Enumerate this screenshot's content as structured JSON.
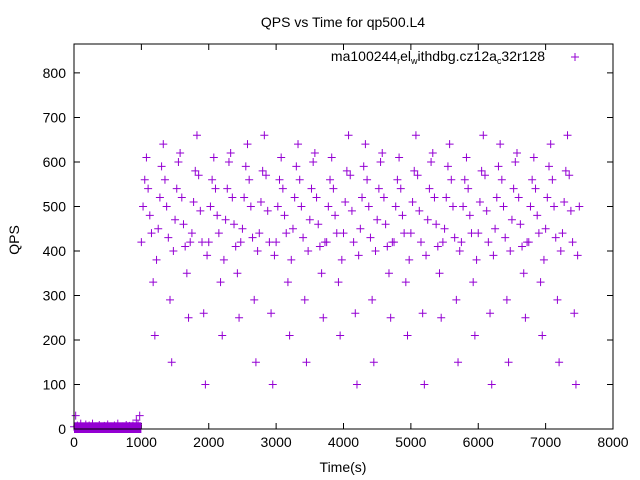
{
  "chart_data": {
    "type": "scatter",
    "title": "QPS vs Time for qp500.L4",
    "xlabel": "Time(s)",
    "ylabel": "QPS",
    "xlim": [
      0,
      8000
    ],
    "ylim": [
      0,
      865
    ],
    "xticks": [
      0,
      1000,
      2000,
      3000,
      4000,
      5000,
      6000,
      7000,
      8000
    ],
    "yticks": [
      0,
      100,
      200,
      300,
      400,
      500,
      600,
      700,
      800
    ],
    "grid": false,
    "legend_position": "top-right",
    "series": [
      {
        "name": "ma100244_rel_withdbg.cz12a_c32r128",
        "name_parts": {
          "a": "ma100244",
          "b": "r",
          "c": "el",
          "d": "w",
          "e": "ithdbg.cz12a",
          "f": "c",
          "g": "32r128"
        },
        "color": "#9400d3",
        "marker": "plus",
        "x_start": 0,
        "x_step": 25,
        "y": [
          5,
          30,
          8,
          5,
          12,
          5,
          3,
          10,
          5,
          8,
          5,
          12,
          4,
          6,
          5,
          9,
          5,
          3,
          7,
          5,
          10,
          5,
          6,
          4,
          8,
          5,
          12,
          5,
          3,
          6,
          5,
          9,
          5,
          7,
          4,
          8,
          5,
          20,
          10,
          30,
          420,
          500,
          560,
          610,
          540,
          480,
          440,
          330,
          210,
          380,
          450,
          520,
          590,
          640,
          560,
          500,
          430,
          290,
          150,
          400,
          470,
          540,
          600,
          620,
          520,
          460,
          410,
          350,
          250,
          420,
          440,
          510,
          580,
          660,
          570,
          490,
          420,
          260,
          100,
          390,
          420,
          500,
          560,
          610,
          540,
          480,
          440,
          330,
          210,
          380,
          470,
          540,
          600,
          620,
          520,
          460,
          410,
          350,
          250,
          420,
          450,
          520,
          590,
          640,
          560,
          500,
          430,
          290,
          150,
          400,
          440,
          510,
          580,
          660,
          570,
          490,
          420,
          260,
          100,
          390,
          420,
          500,
          560,
          610,
          540,
          480,
          440,
          330,
          210,
          380,
          450,
          520,
          590,
          640,
          560,
          500,
          430,
          290,
          150,
          400,
          470,
          540,
          600,
          620,
          520,
          460,
          410,
          350,
          250,
          420,
          420,
          500,
          560,
          610,
          540,
          480,
          440,
          330,
          210,
          380,
          440,
          510,
          580,
          660,
          570,
          490,
          420,
          260,
          100,
          390,
          450,
          520,
          590,
          640,
          560,
          500,
          430,
          290,
          150,
          400,
          470,
          540,
          600,
          620,
          520,
          460,
          410,
          350,
          250,
          420,
          420,
          500,
          560,
          610,
          540,
          480,
          440,
          330,
          210,
          380,
          440,
          510,
          580,
          660,
          570,
          490,
          420,
          260,
          100,
          390,
          470,
          540,
          600,
          620,
          520,
          460,
          410,
          350,
          250,
          420,
          450,
          520,
          590,
          640,
          560,
          500,
          430,
          290,
          150,
          400,
          420,
          500,
          560,
          610,
          540,
          480,
          440,
          330,
          210,
          380,
          440,
          510,
          580,
          660,
          570,
          490,
          420,
          260,
          100,
          390,
          450,
          520,
          590,
          640,
          560,
          500,
          430,
          290,
          150,
          400,
          470,
          540,
          600,
          620,
          520,
          460,
          410,
          350,
          250,
          420,
          420,
          500,
          560,
          610,
          540,
          480,
          440,
          330,
          210,
          380,
          450,
          520,
          590,
          640,
          560,
          500,
          430,
          290,
          150,
          400,
          440,
          510,
          580,
          660,
          570,
          490,
          420,
          260,
          100,
          390,
          500
        ]
      }
    ]
  }
}
